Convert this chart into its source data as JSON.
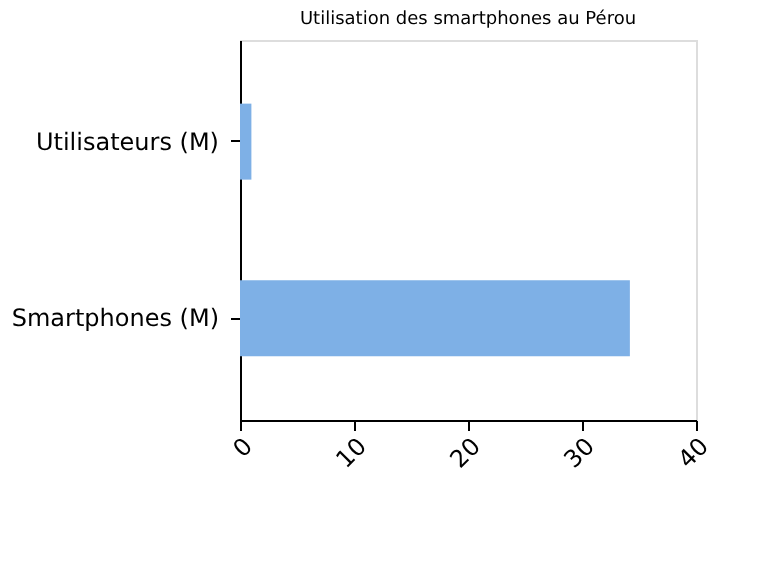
{
  "chart_data": {
    "type": "bar",
    "orientation": "horizontal",
    "title": "Utilisation des smartphones au Pérou",
    "categories": [
      "Utilisateurs (M)",
      "Smartphones (M)"
    ],
    "values": [
      1.0,
      34.2
    ],
    "color": "#7eb0e6",
    "xlim": [
      0,
      40
    ],
    "xticks": [
      0,
      10,
      20,
      30,
      40
    ],
    "grid": false
  }
}
